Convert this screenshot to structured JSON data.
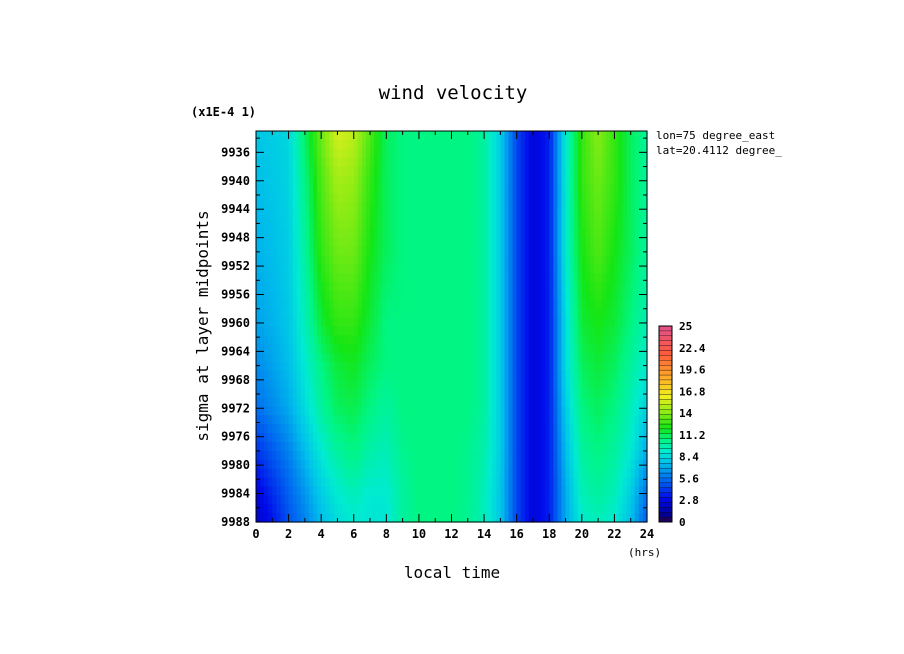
{
  "chart_data": {
    "type": "heatmap",
    "title": "wind velocity",
    "xlabel": "local time",
    "ylabel": "sigma at layer midpoints",
    "x_units": "(hrs)",
    "y_scale_note": "(x1E-4 1)",
    "annotations": [
      "lon=75 degree_east",
      "lat=20.4112 degree_"
    ],
    "xlim": [
      0,
      24
    ],
    "ylim": [
      9988,
      9933
    ],
    "x_ticks": [
      "0",
      "2",
      "4",
      "6",
      "8",
      "10",
      "12",
      "14",
      "16",
      "18",
      "20",
      "22",
      "24"
    ],
    "y_ticks": [
      "9936",
      "9940",
      "9944",
      "9948",
      "9952",
      "9956",
      "9960",
      "9964",
      "9968",
      "9972",
      "9976",
      "9980",
      "9984",
      "9988"
    ],
    "colorbar": {
      "min": 0,
      "max": 25,
      "labels": [
        "25",
        "22.4",
        "19.6",
        "16.8",
        "14",
        "11.2",
        "8.4",
        "5.6",
        "2.8",
        "0"
      ]
    },
    "x": [
      0,
      1,
      2,
      3,
      4,
      5,
      6,
      7,
      8,
      9,
      10,
      11,
      12,
      13,
      14,
      15,
      16,
      17,
      18,
      19,
      20,
      21,
      22,
      23,
      24
    ],
    "y": [
      9933,
      9940,
      9950,
      9960,
      9966,
      9972,
      9978,
      9984,
      9988
    ],
    "z": [
      [
        7.8,
        8.0,
        8.3,
        11.0,
        13.5,
        15.5,
        15.0,
        13.0,
        11.0,
        10.5,
        10.5,
        10.5,
        10.5,
        10.5,
        10.0,
        8.0,
        4.5,
        2.5,
        3.5,
        9.0,
        12.5,
        14.0,
        12.5,
        11.0,
        10.0
      ],
      [
        7.5,
        7.8,
        8.2,
        10.5,
        13.0,
        14.5,
        14.2,
        12.5,
        11.0,
        10.5,
        10.5,
        10.5,
        10.5,
        10.5,
        10.0,
        8.0,
        4.5,
        2.5,
        3.5,
        9.0,
        12.5,
        13.5,
        12.5,
        11.0,
        10.0
      ],
      [
        7.2,
        7.5,
        8.0,
        10.0,
        12.5,
        13.5,
        13.5,
        12.0,
        11.0,
        10.5,
        10.5,
        10.5,
        10.5,
        10.5,
        10.0,
        8.0,
        4.5,
        2.5,
        3.5,
        9.0,
        12.0,
        13.0,
        12.0,
        11.0,
        10.0
      ],
      [
        6.8,
        7.2,
        7.8,
        9.5,
        11.5,
        12.5,
        12.5,
        11.5,
        10.5,
        10.5,
        10.5,
        10.5,
        10.5,
        10.5,
        10.0,
        8.0,
        4.5,
        2.5,
        3.5,
        8.5,
        11.5,
        12.0,
        11.5,
        10.5,
        9.5
      ],
      [
        6.2,
        6.8,
        7.5,
        9.0,
        10.5,
        11.5,
        11.8,
        11.0,
        10.5,
        10.5,
        10.5,
        10.5,
        10.5,
        10.5,
        10.0,
        8.0,
        4.5,
        2.5,
        3.5,
        8.5,
        11.0,
        11.5,
        11.0,
        10.0,
        9.0
      ],
      [
        5.5,
        6.2,
        7.0,
        8.5,
        10.0,
        11.0,
        11.2,
        10.5,
        10.0,
        10.5,
        10.5,
        10.5,
        10.5,
        10.5,
        10.0,
        8.0,
        4.5,
        2.5,
        3.5,
        8.0,
        10.5,
        11.0,
        10.5,
        9.5,
        8.0
      ],
      [
        4.0,
        5.0,
        6.0,
        7.5,
        9.0,
        10.0,
        10.5,
        9.8,
        9.5,
        10.3,
        10.5,
        10.5,
        10.5,
        10.3,
        9.8,
        8.0,
        4.5,
        2.5,
        3.5,
        7.5,
        10.0,
        10.5,
        10.0,
        9.0,
        7.0
      ],
      [
        2.5,
        3.8,
        5.2,
        6.5,
        8.0,
        9.0,
        9.5,
        9.0,
        9.0,
        10.0,
        10.5,
        10.5,
        10.5,
        10.3,
        9.5,
        7.8,
        4.5,
        2.5,
        3.5,
        7.0,
        9.5,
        10.0,
        9.5,
        8.0,
        5.5
      ],
      [
        2.0,
        3.2,
        4.8,
        6.0,
        7.5,
        8.5,
        9.0,
        8.8,
        8.8,
        10.0,
        10.5,
        10.5,
        10.5,
        10.2,
        9.5,
        7.8,
        4.5,
        2.5,
        3.5,
        7.0,
        9.0,
        9.5,
        9.0,
        7.5,
        5.0
      ]
    ]
  }
}
